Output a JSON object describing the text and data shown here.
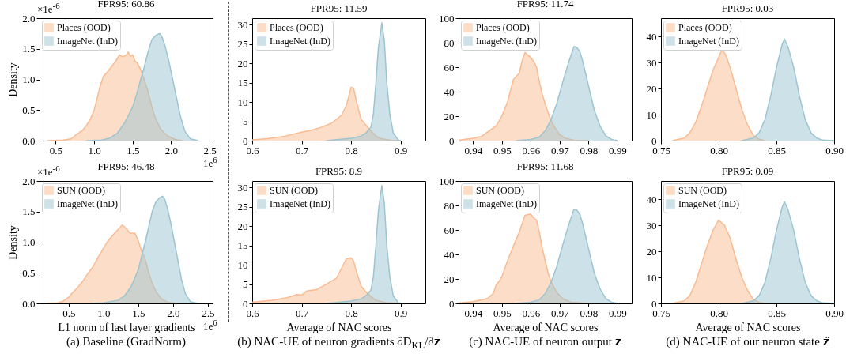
{
  "chart_data": [
    {
      "type": "area",
      "title": "FPR95: 60.86",
      "ylabel": "Density",
      "legend": "top left",
      "grid": false,
      "annotations": [
        "×1e$^{-6}$",
        "1e$^{6}$"
      ],
      "xlim": [
        0.29,
        2.54
      ],
      "xticks": [
        0.5,
        {
          "value": 1.0,
          "label": "1.0"
        },
        1.5,
        {
          "value": 2.0,
          "label": "2.0"
        },
        2.5
      ],
      "ylim": [
        0,
        2
      ],
      "yticks": [
        {
          "value": 0,
          "label": "0.0"
        },
        0.5,
        {
          "value": 1,
          "label": "1.0"
        },
        1.5,
        {
          "value": 2,
          "label": "2.0"
        }
      ],
      "series": [
        {
          "name": "Places (OOD)",
          "color": "#f9bb91",
          "x": [
            0.39,
            0.6,
            0.7,
            0.77,
            0.85,
            0.9,
            0.95,
            1.0,
            1.05,
            1.08,
            1.12,
            1.17,
            1.22,
            1.28,
            1.33,
            1.37,
            1.42,
            1.44,
            1.47,
            1.5,
            1.53,
            1.56,
            1.6,
            1.65,
            1.7,
            1.75,
            1.8,
            1.87,
            1.95,
            2.05,
            2.15
          ],
          "values": [
            0,
            0.01,
            0.03,
            0.1,
            0.17,
            0.25,
            0.35,
            0.5,
            0.75,
            0.9,
            1.05,
            1.12,
            1.2,
            1.3,
            1.4,
            1.37,
            1.4,
            1.45,
            1.38,
            1.4,
            1.3,
            1.27,
            1.17,
            1.0,
            0.8,
            0.55,
            0.35,
            0.18,
            0.08,
            0.02,
            0
          ]
        },
        {
          "name": "ImageNet (InD)",
          "color": "#9cc5d1",
          "x": [
            0.9,
            1.1,
            1.2,
            1.3,
            1.4,
            1.5,
            1.55,
            1.6,
            1.65,
            1.7,
            1.75,
            1.8,
            1.85,
            1.88,
            1.92,
            1.97,
            2.02,
            2.07,
            2.12,
            2.18,
            2.25,
            2.35
          ],
          "values": [
            0,
            0.01,
            0.04,
            0.12,
            0.3,
            0.55,
            0.75,
            0.98,
            1.2,
            1.45,
            1.65,
            1.72,
            1.75,
            1.7,
            1.55,
            1.3,
            1.0,
            0.7,
            0.4,
            0.15,
            0.03,
            0
          ]
        }
      ]
    },
    {
      "type": "area",
      "title": "FPR95: 11.59",
      "legend": "top left",
      "grid": false,
      "xlim": [
        0.6,
        0.95
      ],
      "xticks": [
        0.6,
        0.7,
        0.8,
        0.9
      ],
      "ylim": [
        0,
        31.7
      ],
      "yticks": [
        0,
        5,
        10,
        15,
        20,
        25,
        30
      ],
      "series": [
        {
          "name": "Places (OOD)",
          "color": "#f9bb91",
          "x": [
            0.6,
            0.63,
            0.66,
            0.7,
            0.72,
            0.74,
            0.76,
            0.78,
            0.79,
            0.8,
            0.805,
            0.81,
            0.82,
            0.83,
            0.84,
            0.85,
            0.86,
            0.88,
            0.9
          ],
          "values": [
            0.2,
            0.5,
            1.0,
            2.2,
            2.7,
            3.5,
            4.5,
            6.5,
            9,
            13.8,
            13.5,
            10.5,
            5.5,
            4,
            2.5,
            1.2,
            0.5,
            0.1,
            0
          ]
        },
        {
          "name": "ImageNet (InD)",
          "color": "#9cc5d1",
          "x": [
            0.75,
            0.8,
            0.82,
            0.83,
            0.84,
            0.845,
            0.85,
            0.855,
            0.862,
            0.867,
            0.872,
            0.878,
            0.885,
            0.895,
            0.9
          ],
          "values": [
            0,
            0.6,
            1.2,
            2,
            3.5,
            7,
            15,
            24,
            30.5,
            26,
            15,
            7,
            2,
            0.2,
            0
          ]
        }
      ]
    },
    {
      "type": "area",
      "title": "FPR95: 11.74",
      "legend": "top left",
      "grid": false,
      "xlim": [
        0.935,
        0.995
      ],
      "xticks": [
        0.94,
        0.95,
        0.96,
        0.97,
        0.98,
        0.99
      ],
      "ylim": [
        0,
        100
      ],
      "yticks": [
        0,
        20,
        40,
        60,
        80,
        100
      ],
      "series": [
        {
          "name": "Places (OOD)",
          "color": "#f9bb91",
          "x": [
            0.935,
            0.94,
            0.943,
            0.945,
            0.948,
            0.95,
            0.952,
            0.954,
            0.956,
            0.957,
            0.958,
            0.959,
            0.96,
            0.961,
            0.962,
            0.963,
            0.964,
            0.965,
            0.966,
            0.967,
            0.968,
            0.97,
            0.972,
            0.975,
            0.98
          ],
          "values": [
            0.3,
            2,
            3.5,
            7,
            12,
            20,
            32,
            50,
            55,
            65,
            72,
            70,
            68,
            65,
            60,
            48,
            38,
            30,
            23,
            17,
            12,
            5,
            2,
            0.3,
            0
          ]
        },
        {
          "name": "ImageNet (InD)",
          "color": "#9cc5d1",
          "x": [
            0.955,
            0.96,
            0.963,
            0.965,
            0.967,
            0.969,
            0.971,
            0.973,
            0.975,
            0.976,
            0.977,
            0.978,
            0.979,
            0.98,
            0.981,
            0.982,
            0.984,
            0.986,
            0.988,
            0.99
          ],
          "values": [
            0,
            1,
            3,
            8,
            17,
            30,
            47,
            63,
            77,
            76,
            73,
            65,
            55,
            45,
            35,
            25,
            12,
            4,
            1,
            0
          ]
        }
      ]
    },
    {
      "type": "area",
      "title": "FPR95: 0.03",
      "legend": "top left",
      "grid": false,
      "xlim": [
        0.75,
        0.9
      ],
      "xticks": [
        0.75,
        {
          "value": 0.8,
          "label": "0.80"
        },
        0.85,
        {
          "value": 0.9,
          "label": "0.90"
        }
      ],
      "ylim": [
        0,
        47
      ],
      "yticks": [
        0,
        10,
        20,
        30,
        40
      ],
      "series": [
        {
          "name": "Places (OOD)",
          "color": "#f9bb91",
          "x": [
            0.76,
            0.77,
            0.775,
            0.78,
            0.785,
            0.79,
            0.795,
            0.8,
            0.803,
            0.806,
            0.81,
            0.815,
            0.82,
            0.825,
            0.83,
            0.835,
            0.84
          ],
          "values": [
            0,
            1,
            3,
            7,
            13,
            20,
            27,
            32,
            35,
            33,
            28,
            20,
            12,
            6,
            2,
            0.5,
            0
          ]
        },
        {
          "name": "ImageNet (InD)",
          "color": "#9cc5d1",
          "x": [
            0.82,
            0.83,
            0.835,
            0.84,
            0.845,
            0.85,
            0.855,
            0.857,
            0.86,
            0.865,
            0.87,
            0.875,
            0.88,
            0.885,
            0.89,
            0.9
          ],
          "values": [
            0,
            1,
            3,
            8,
            17,
            28,
            37,
            39,
            36,
            28,
            17,
            8,
            3,
            1,
            0.2,
            0
          ]
        }
      ]
    },
    {
      "type": "area",
      "title": "FPR95: 46.48",
      "ylabel": "Density",
      "xlabel": "L1 norm of last layer gradients",
      "legend": "top left",
      "grid": false,
      "annotations": [
        "×1e$^{-6}$",
        "1e$^{6}$",
        "(a) Baseline (GradNorm)"
      ],
      "xlim": [
        0.08,
        2.57
      ],
      "xticks": [
        0.5,
        {
          "value": 1.0,
          "label": "1.0"
        },
        1.5,
        {
          "value": 2.0,
          "label": "2.0"
        },
        2.5
      ],
      "ylim": [
        0,
        2
      ],
      "yticks": [
        {
          "value": 0,
          "label": "0.0"
        },
        0.5,
        {
          "value": 1,
          "label": "1.0"
        },
        1.5,
        {
          "value": 2,
          "label": "2.0"
        }
      ],
      "series": [
        {
          "name": "SUN (OOD)",
          "color": "#f9bb91",
          "x": [
            0.2,
            0.35,
            0.42,
            0.5,
            0.55,
            0.62,
            0.7,
            0.8,
            0.85,
            0.92,
            1.0,
            1.05,
            1.1,
            1.17,
            1.22,
            1.27,
            1.33,
            1.38,
            1.45,
            1.5,
            1.55,
            1.6,
            1.65,
            1.7,
            1.76,
            1.83,
            1.92,
            2.05
          ],
          "values": [
            0,
            0.01,
            0.04,
            0.1,
            0.17,
            0.25,
            0.36,
            0.53,
            0.6,
            0.75,
            0.9,
            1.0,
            1.07,
            1.16,
            1.22,
            1.28,
            1.22,
            1.15,
            1.15,
            1.02,
            0.85,
            0.72,
            0.5,
            0.33,
            0.18,
            0.08,
            0.02,
            0
          ]
        },
        {
          "name": "ImageNet (InD)",
          "color": "#9cc5d1",
          "x": [
            0.8,
            1.0,
            1.2,
            1.3,
            1.4,
            1.5,
            1.55,
            1.6,
            1.65,
            1.7,
            1.75,
            1.8,
            1.85,
            1.88,
            1.92,
            1.97,
            2.02,
            2.07,
            2.12,
            2.18,
            2.25,
            2.35
          ],
          "values": [
            0,
            0.01,
            0.05,
            0.12,
            0.28,
            0.55,
            0.78,
            1.0,
            1.25,
            1.5,
            1.65,
            1.72,
            1.75,
            1.7,
            1.55,
            1.3,
            1.0,
            0.7,
            0.4,
            0.15,
            0.03,
            0
          ]
        }
      ]
    },
    {
      "type": "area",
      "title": "FPR95: 8.9",
      "xlabel": "Average of NAC scores",
      "legend": "top left",
      "grid": false,
      "annotations": [
        "(b) NAC-UE of neuron gradients ∂D$_{KL}$/∂𝐳"
      ],
      "xlim": [
        0.6,
        0.95
      ],
      "xticks": [
        0.6,
        0.7,
        0.8,
        0.9
      ],
      "ylim": [
        0,
        31.7
      ],
      "yticks": [
        0,
        5,
        10,
        15,
        20,
        25,
        30
      ],
      "series": [
        {
          "name": "SUN (OOD)",
          "color": "#f9bb91",
          "x": [
            0.6,
            0.64,
            0.67,
            0.69,
            0.7,
            0.71,
            0.73,
            0.75,
            0.77,
            0.78,
            0.79,
            0.8,
            0.805,
            0.81,
            0.82,
            0.83,
            0.84,
            0.85,
            0.87,
            0.9
          ],
          "values": [
            0.3,
            0.8,
            1.5,
            2.3,
            2.2,
            3.2,
            3.6,
            5,
            6.5,
            9,
            11.5,
            11.8,
            11,
            8.5,
            4.5,
            3,
            1.8,
            0.8,
            0.2,
            0
          ]
        },
        {
          "name": "ImageNet (InD)",
          "color": "#9cc5d1",
          "x": [
            0.75,
            0.8,
            0.82,
            0.83,
            0.84,
            0.845,
            0.85,
            0.855,
            0.862,
            0.867,
            0.872,
            0.878,
            0.885,
            0.895,
            0.9
          ],
          "values": [
            0,
            0.6,
            1.2,
            2,
            3.5,
            7,
            15,
            24,
            30.5,
            26,
            15,
            7,
            2,
            0.2,
            0
          ]
        }
      ]
    },
    {
      "type": "area",
      "title": "FPR95: 11.68",
      "xlabel": "Average of NAC scores",
      "legend": "top left",
      "grid": false,
      "annotations": [
        "(c) NAC-UE of neuron output 𝐳"
      ],
      "xlim": [
        0.935,
        0.995
      ],
      "xticks": [
        0.94,
        0.95,
        0.96,
        0.97,
        0.98,
        0.99
      ],
      "ylim": [
        0,
        100
      ],
      "yticks": [
        0,
        20,
        40,
        60,
        80,
        100
      ],
      "series": [
        {
          "name": "SUN (OOD)",
          "color": "#f9bb91",
          "x": [
            0.935,
            0.94,
            0.945,
            0.947,
            0.948,
            0.949,
            0.95,
            0.952,
            0.954,
            0.956,
            0.957,
            0.958,
            0.96,
            0.961,
            0.962,
            0.963,
            0.964,
            0.965,
            0.966,
            0.967,
            0.969,
            0.971,
            0.974,
            0.98
          ],
          "values": [
            0.3,
            1.5,
            4,
            8,
            15,
            18,
            22,
            35,
            47,
            58,
            65,
            72,
            73,
            70,
            68,
            58,
            45,
            35,
            25,
            18,
            9,
            4,
            1,
            0
          ]
        },
        {
          "name": "ImageNet (InD)",
          "color": "#9cc5d1",
          "x": [
            0.955,
            0.96,
            0.963,
            0.965,
            0.967,
            0.969,
            0.971,
            0.973,
            0.975,
            0.976,
            0.977,
            0.978,
            0.979,
            0.98,
            0.981,
            0.982,
            0.984,
            0.986,
            0.988,
            0.99
          ],
          "values": [
            0,
            1,
            3,
            8,
            17,
            30,
            47,
            63,
            77,
            76,
            73,
            65,
            55,
            45,
            35,
            25,
            12,
            4,
            1,
            0
          ]
        }
      ]
    },
    {
      "type": "area",
      "title": "FPR95: 0.09",
      "xlabel": "Average of NAC scores",
      "legend": "top left",
      "grid": false,
      "annotations": [
        "(d) NAC-UE of our neuron state 𝐳̂"
      ],
      "xlim": [
        0.75,
        0.9
      ],
      "xticks": [
        0.75,
        {
          "value": 0.8,
          "label": "0.80"
        },
        0.85,
        {
          "value": 0.9,
          "label": "0.90"
        }
      ],
      "ylim": [
        0,
        47
      ],
      "yticks": [
        0,
        10,
        20,
        30,
        40
      ],
      "series": [
        {
          "name": "SUN (OOD)",
          "color": "#f9bb91",
          "x": [
            0.76,
            0.77,
            0.775,
            0.78,
            0.785,
            0.79,
            0.795,
            0.8,
            0.805,
            0.81,
            0.815,
            0.82,
            0.825,
            0.83,
            0.835,
            0.84
          ],
          "values": [
            0,
            1,
            3,
            8,
            15,
            22,
            28,
            32,
            30,
            25,
            17,
            10,
            5,
            1.5,
            0.4,
            0
          ]
        },
        {
          "name": "ImageNet (InD)",
          "color": "#9cc5d1",
          "x": [
            0.82,
            0.83,
            0.835,
            0.84,
            0.845,
            0.85,
            0.855,
            0.857,
            0.86,
            0.865,
            0.87,
            0.875,
            0.88,
            0.885,
            0.89,
            0.9
          ],
          "values": [
            0,
            1,
            3,
            8,
            17,
            28,
            37,
            39,
            36,
            28,
            17,
            8,
            3,
            1,
            0.2,
            0
          ]
        }
      ]
    }
  ]
}
